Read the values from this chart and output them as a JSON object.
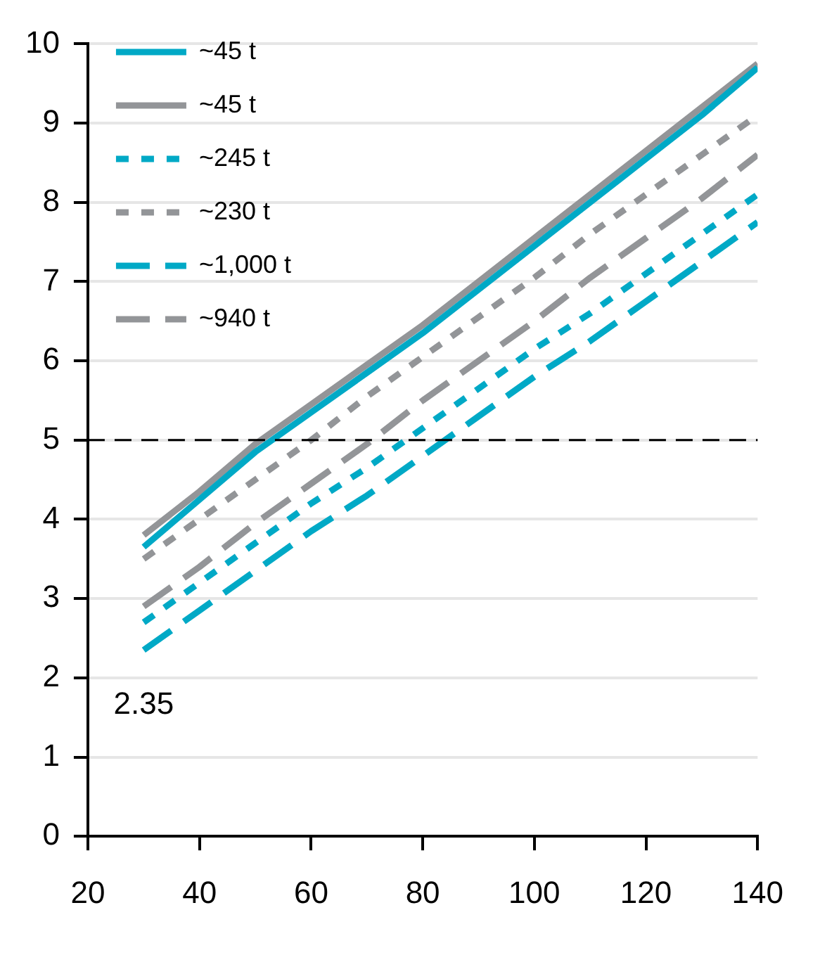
{
  "chart_data": {
    "type": "line",
    "x": [
      30,
      40,
      50,
      60,
      70,
      80,
      90,
      100,
      110,
      120,
      130,
      140
    ],
    "series": [
      {
        "name": "~45 t",
        "color": "#00a9c6",
        "line_style": "solid",
        "values": [
          3.65,
          4.25,
          4.85,
          5.35,
          5.85,
          6.35,
          6.9,
          7.45,
          8.0,
          8.55,
          9.1,
          9.7
        ]
      },
      {
        "name": "~45 t",
        "color": "#939598",
        "line_style": "solid",
        "values": [
          3.8,
          4.35,
          4.95,
          5.45,
          5.95,
          6.45,
          7.0,
          7.55,
          8.1,
          8.65,
          9.2,
          9.75
        ]
      },
      {
        "name": "~245 t",
        "color": "#00a9c6",
        "line_style": "dotted",
        "values": [
          2.7,
          3.2,
          3.7,
          4.2,
          4.65,
          5.15,
          5.65,
          6.15,
          6.6,
          7.1,
          7.6,
          8.1
        ]
      },
      {
        "name": "~230 t",
        "color": "#939598",
        "line_style": "dotted",
        "values": [
          3.5,
          4.0,
          4.5,
          5.0,
          5.55,
          6.05,
          6.55,
          7.05,
          7.6,
          8.1,
          8.6,
          9.1
        ]
      },
      {
        "name": "~1,000 t",
        "color": "#00a9c6",
        "line_style": "dashed",
        "values": [
          2.35,
          2.85,
          3.35,
          3.85,
          4.3,
          4.8,
          5.3,
          5.8,
          6.25,
          6.75,
          7.25,
          7.75
        ]
      },
      {
        "name": "~940 t",
        "color": "#939598",
        "line_style": "dashed",
        "values": [
          2.9,
          3.4,
          3.95,
          4.45,
          4.95,
          5.5,
          6.0,
          6.5,
          7.05,
          7.55,
          8.05,
          8.6
        ]
      }
    ],
    "xlim": [
      20,
      140
    ],
    "xticks": [
      20,
      40,
      60,
      80,
      100,
      120,
      140
    ],
    "ylim": [
      0,
      10
    ],
    "yticks": [
      0,
      1,
      2,
      3,
      4,
      5,
      6,
      7,
      8,
      9,
      10
    ],
    "grid": "y",
    "legend": "top left",
    "marker": "none",
    "ref_lines": [
      {
        "axis": "y",
        "value": 5,
        "color": "#000000",
        "line_style": "dashed"
      }
    ],
    "annotations": [
      {
        "text": "2.35",
        "x": 30,
        "y": 2.35
      }
    ]
  }
}
